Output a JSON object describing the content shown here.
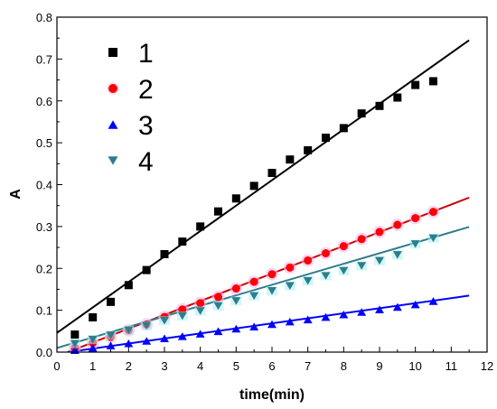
{
  "chart_data": {
    "type": "scatter",
    "title": "",
    "xlabel": "time(min)",
    "ylabel": "A",
    "xlim": [
      0,
      12
    ],
    "ylim": [
      0,
      0.8
    ],
    "x_ticks": [
      0,
      1,
      2,
      3,
      4,
      5,
      6,
      7,
      8,
      9,
      10,
      11,
      12
    ],
    "y_ticks": [
      0.0,
      0.1,
      0.2,
      0.3,
      0.4,
      0.5,
      0.6,
      0.7,
      0.8
    ],
    "y_tick_labels": [
      "0.0",
      "0.1",
      "0.2",
      "0.3",
      "0.4",
      "0.5",
      "0.6",
      "0.7",
      "0.8"
    ],
    "grid": false,
    "legend_position": "top-left",
    "series": [
      {
        "name": "1",
        "marker": "square",
        "color": "#000000",
        "line_color": "#000000",
        "x": [
          0.5,
          1.0,
          1.5,
          2.0,
          2.5,
          3.0,
          3.5,
          4.0,
          4.5,
          5.0,
          5.5,
          6.0,
          6.5,
          7.0,
          7.5,
          8.0,
          8.5,
          9.0,
          9.5,
          10.0,
          10.5
        ],
        "y": [
          0.042,
          0.083,
          0.12,
          0.16,
          0.196,
          0.234,
          0.264,
          0.3,
          0.336,
          0.367,
          0.397,
          0.428,
          0.46,
          0.482,
          0.512,
          0.535,
          0.57,
          0.588,
          0.608,
          0.638,
          0.647
        ],
        "fit": {
          "x": [
            0,
            11.5
          ],
          "y": [
            0.046,
            0.745
          ]
        }
      },
      {
        "name": "2",
        "marker": "circle",
        "color": "#ff0000",
        "line_color": "#cc0000",
        "x": [
          0.5,
          1.0,
          1.5,
          2.0,
          2.5,
          3.0,
          3.5,
          4.0,
          4.5,
          5.0,
          5.5,
          6.0,
          6.5,
          7.0,
          7.5,
          8.0,
          8.5,
          9.0,
          9.5,
          10.0,
          10.5
        ],
        "y": [
          0.01,
          0.022,
          0.036,
          0.052,
          0.066,
          0.084,
          0.102,
          0.117,
          0.132,
          0.152,
          0.168,
          0.186,
          0.202,
          0.219,
          0.236,
          0.253,
          0.27,
          0.287,
          0.304,
          0.32,
          0.335
        ],
        "fit": {
          "x": [
            0.3,
            11.5
          ],
          "y": [
            0.0,
            0.369
          ]
        }
      },
      {
        "name": "3",
        "marker": "triangle-up",
        "color": "#0000ff",
        "line_color": "#0000ff",
        "x": [
          0.5,
          1.0,
          1.5,
          2.0,
          2.5,
          3.0,
          3.5,
          4.0,
          4.5,
          5.0,
          5.5,
          6.0,
          6.5,
          7.0,
          7.5,
          8.0,
          8.5,
          9.0,
          9.5,
          10.0,
          10.5
        ],
        "y": [
          0.005,
          0.01,
          0.016,
          0.021,
          0.027,
          0.033,
          0.038,
          0.044,
          0.05,
          0.056,
          0.061,
          0.067,
          0.073,
          0.078,
          0.084,
          0.09,
          0.096,
          0.102,
          0.108,
          0.114,
          0.122
        ],
        "fit": {
          "x": [
            0.3,
            11.5
          ],
          "y": [
            0.0,
            0.135
          ]
        }
      },
      {
        "name": "4",
        "marker": "triangle-down",
        "color": "#2e7d8c",
        "line_color": "#2e7d8c",
        "x": [
          0.5,
          1.0,
          1.5,
          2.0,
          2.5,
          3.0,
          3.5,
          4.0,
          4.5,
          5.0,
          5.5,
          6.0,
          6.5,
          7.0,
          7.5,
          8.0,
          8.5,
          9.0,
          9.5,
          10.0,
          10.5
        ],
        "y": [
          0.02,
          0.03,
          0.04,
          0.052,
          0.063,
          0.075,
          0.086,
          0.098,
          0.11,
          0.122,
          0.134,
          0.146,
          0.158,
          0.17,
          0.182,
          0.194,
          0.206,
          0.218,
          0.232,
          0.258,
          0.272
        ],
        "fit": {
          "x": [
            0.0,
            11.5
          ],
          "y": [
            0.01,
            0.299
          ]
        }
      }
    ]
  }
}
